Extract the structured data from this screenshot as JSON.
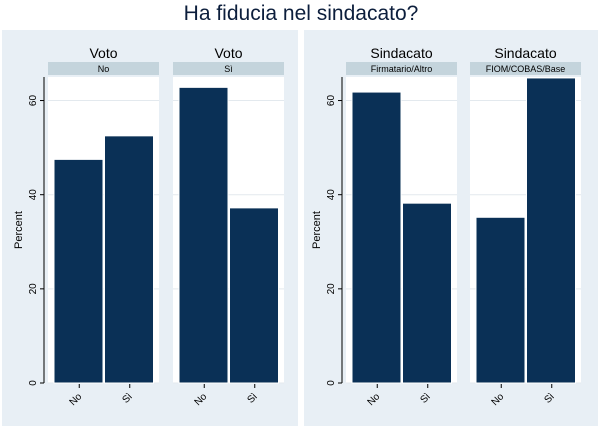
{
  "title": "Ha fiducia nel sindacato?",
  "colors": {
    "bar": "#0a3056",
    "bar_outline": "#ffffff",
    "strip": "#c4d4dc",
    "outer_background": "#e8eff5",
    "plot_background": "#ffffff",
    "gridline": "#e3e9ee"
  },
  "chart_data": [
    {
      "type": "bar",
      "ylabel": "Percent",
      "ylim": [
        0,
        65
      ],
      "yticks": [
        "0",
        "20",
        "40",
        "60"
      ],
      "grid": true,
      "panels": [
        {
          "subtitle": "Voto",
          "strip_label": "No",
          "categories": [
            "No",
            "Sì"
          ],
          "values": [
            47.5,
            52.5
          ]
        },
        {
          "subtitle": "Voto",
          "strip_label": "Sì",
          "categories": [
            "No",
            "Sì"
          ],
          "values": [
            62.8,
            37.2
          ]
        }
      ]
    },
    {
      "type": "bar",
      "ylabel": "Percent",
      "ylim": [
        0,
        65
      ],
      "yticks": [
        "0",
        "20",
        "40",
        "60"
      ],
      "grid": true,
      "panels": [
        {
          "subtitle": "Sindacato",
          "strip_label": "Firmatario/Altro",
          "categories": [
            "No",
            "Sì"
          ],
          "values": [
            61.8,
            38.2
          ]
        },
        {
          "subtitle": "Sindacato",
          "strip_label": "FIOM/COBAS/Base",
          "categories": [
            "No",
            "Sì"
          ],
          "values": [
            35.2,
            64.8
          ]
        }
      ]
    }
  ]
}
